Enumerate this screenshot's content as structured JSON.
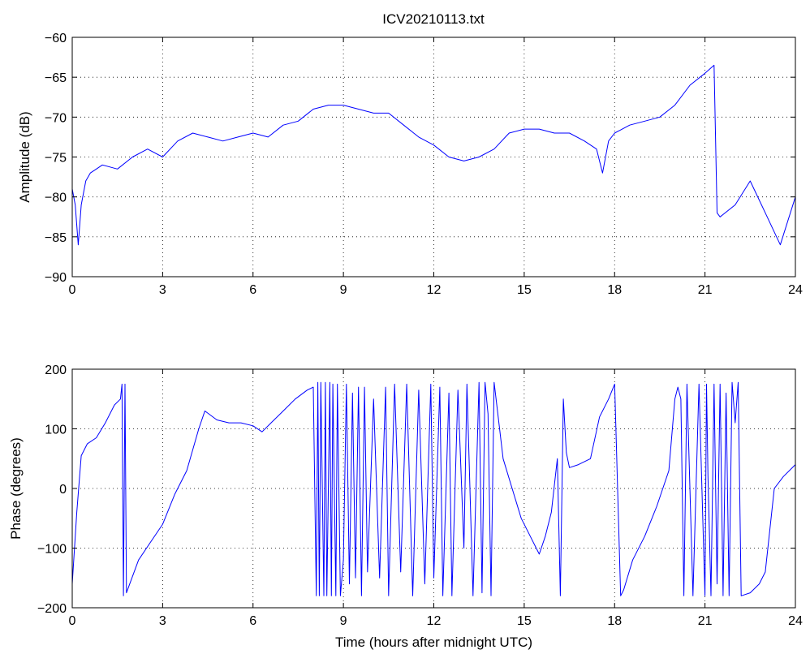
{
  "title": "ICV20210113.txt",
  "colors": {
    "trace": "#0000ff",
    "axes": "#000000",
    "background": "#ffffff"
  },
  "chart_data": [
    {
      "type": "line",
      "title": "ICV20210113.txt",
      "xlabel": "",
      "ylabel": "Amplitude (dB)",
      "xlim": [
        0,
        24
      ],
      "ylim": [
        -90,
        -60
      ],
      "grid": true,
      "xticks": [
        0,
        3,
        6,
        9,
        12,
        15,
        18,
        21,
        24
      ],
      "xtick_labels": [
        "0",
        "3",
        "6",
        "9",
        "12",
        "15",
        "18",
        "21",
        "24"
      ],
      "yticks": [
        -90,
        -85,
        -80,
        -75,
        -70,
        -65,
        -60
      ],
      "ytick_labels": [
        "−90",
        "−85",
        "−80",
        "−75",
        "−70",
        "−65",
        "−60"
      ],
      "series": [
        {
          "x": [
            0,
            0.1,
            0.2,
            0.3,
            0.45,
            0.6,
            0.8,
            1.0,
            1.5,
            2.0,
            2.5,
            3.0,
            3.5,
            4.0,
            4.5,
            5.0,
            5.5,
            6.0,
            6.5,
            7.0,
            7.5,
            8.0,
            8.5,
            9.0,
            9.5,
            10.0,
            10.5,
            11.0,
            11.5,
            12.0,
            12.5,
            13.0,
            13.5,
            14.0,
            14.5,
            15.0,
            15.5,
            16.0,
            16.5,
            17.0,
            17.4,
            17.6,
            17.8,
            18.0,
            18.5,
            19.0,
            19.5,
            20.0,
            20.5,
            21.0,
            21.3,
            21.4,
            21.5,
            22.0,
            22.5,
            23.0,
            23.5,
            24.0
          ],
          "y": [
            -79,
            -81,
            -86,
            -81,
            -78,
            -77,
            -76.5,
            -76,
            -76.5,
            -75,
            -74,
            -75,
            -73,
            -72,
            -72.5,
            -73,
            -72.5,
            -72,
            -72.5,
            -71,
            -70.5,
            -69,
            -68.5,
            -68.5,
            -69,
            -69.5,
            -69.5,
            -71,
            -72.5,
            -73.5,
            -75,
            -75.5,
            -75,
            -74,
            -72,
            -71.5,
            -71.5,
            -72,
            -72,
            -73,
            -74,
            -77,
            -73,
            -72,
            -71,
            -70.5,
            -70,
            -68.5,
            -66,
            -64.5,
            -63.5,
            -82,
            -82.5,
            -81,
            -78,
            -82,
            -86,
            -80
          ]
        }
      ]
    },
    {
      "type": "line",
      "title": "",
      "xlabel": "Time (hours after midnight UTC)",
      "ylabel": "Phase (degrees)",
      "xlim": [
        0,
        24
      ],
      "ylim": [
        -200,
        200
      ],
      "grid": true,
      "xticks": [
        0,
        3,
        6,
        9,
        12,
        15,
        18,
        21,
        24
      ],
      "xtick_labels": [
        "0",
        "3",
        "6",
        "9",
        "12",
        "15",
        "18",
        "21",
        "24"
      ],
      "yticks": [
        -200,
        -100,
        0,
        100,
        200
      ],
      "ytick_labels": [
        "−200",
        "−100",
        "0",
        "100",
        "200"
      ],
      "series": [
        {
          "x": [
            0,
            0.15,
            0.3,
            0.5,
            0.8,
            1.1,
            1.4,
            1.6,
            1.65,
            1.7,
            1.75,
            1.8,
            2.2,
            2.6,
            3.0,
            3.4,
            3.8,
            4.2,
            4.4,
            4.8,
            5.2,
            5.6,
            6.0,
            6.3,
            6.6,
            7.0,
            7.4,
            7.8,
            8.0,
            8.1,
            8.15,
            8.2,
            8.25,
            8.35,
            8.4,
            8.45,
            8.55,
            8.6,
            8.65,
            8.75,
            8.8,
            8.9,
            9.0,
            9.1,
            9.2,
            9.3,
            9.4,
            9.5,
            9.6,
            9.7,
            9.8,
            10.0,
            10.2,
            10.4,
            10.5,
            10.7,
            10.9,
            11.1,
            11.3,
            11.5,
            11.7,
            11.9,
            12.0,
            12.2,
            12.3,
            12.5,
            12.6,
            12.8,
            13.0,
            13.1,
            13.3,
            13.5,
            13.6,
            13.7,
            13.8,
            13.9,
            14.0,
            14.3,
            14.6,
            14.9,
            15.2,
            15.5,
            15.7,
            15.9,
            16.1,
            16.2,
            16.3,
            16.4,
            16.5,
            16.8,
            17.2,
            17.5,
            17.8,
            18.0,
            18.2,
            18.3,
            18.6,
            19.0,
            19.4,
            19.8,
            20.0,
            20.1,
            20.2,
            20.3,
            20.4,
            20.6,
            20.8,
            21.0,
            21.05,
            21.1,
            21.2,
            21.3,
            21.4,
            21.5,
            21.6,
            21.7,
            21.8,
            21.9,
            22.0,
            22.1,
            22.2,
            22.5,
            22.8,
            23.0,
            23.3,
            23.6,
            24.0
          ],
          "y": [
            -160,
            -40,
            55,
            75,
            85,
            110,
            140,
            150,
            175,
            -180,
            175,
            -175,
            -120,
            -90,
            -60,
            -10,
            30,
            100,
            130,
            115,
            110,
            110,
            105,
            95,
            110,
            130,
            150,
            165,
            170,
            -180,
            178,
            -180,
            178,
            -180,
            178,
            -180,
            178,
            -180,
            175,
            -180,
            175,
            -180,
            -120,
            175,
            -160,
            160,
            -150,
            170,
            -180,
            170,
            -140,
            150,
            -150,
            170,
            -180,
            175,
            -140,
            175,
            -180,
            165,
            -160,
            175,
            -150,
            170,
            -180,
            160,
            -180,
            165,
            -100,
            175,
            -180,
            178,
            -175,
            178,
            125,
            -180,
            178,
            50,
            0,
            -50,
            -80,
            -110,
            -80,
            -40,
            50,
            -180,
            150,
            60,
            35,
            40,
            50,
            120,
            150,
            175,
            -180,
            -170,
            -120,
            -80,
            -30,
            30,
            150,
            170,
            150,
            -180,
            175,
            -180,
            175,
            -180,
            175,
            20,
            -180,
            175,
            -160,
            175,
            -180,
            160,
            -180,
            178,
            110,
            178,
            -180,
            -175,
            -160,
            -140,
            0,
            20,
            40
          ]
        }
      ]
    }
  ]
}
